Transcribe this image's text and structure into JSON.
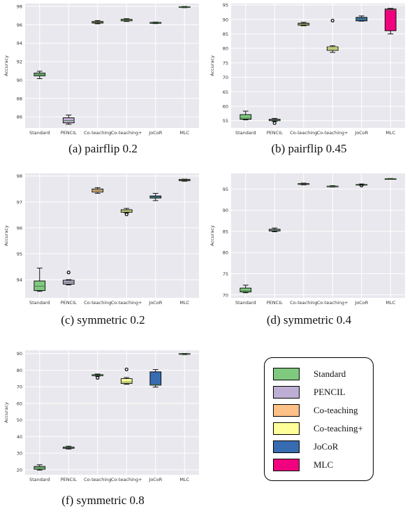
{
  "colors": {
    "Standard": "#7fc97f",
    "PENCIL": "#beaed4",
    "Co-teaching": "#fdc086",
    "Co-teaching+": "#ffff99",
    "JoCoR": "#386cb0",
    "MLC": "#f0027f",
    "plot_bg": "#e8e8ee",
    "grid": "#ffffff"
  },
  "legend": {
    "items": [
      {
        "label": "Standard",
        "color": "#7fc97f"
      },
      {
        "label": "PENCIL",
        "color": "#beaed4"
      },
      {
        "label": "Co-teaching",
        "color": "#fdc086"
      },
      {
        "label": "Co-teaching+",
        "color": "#ffff99"
      },
      {
        "label": "JoCoR",
        "color": "#386cb0"
      },
      {
        "label": "MLC",
        "color": "#f0027f"
      }
    ]
  },
  "chart_data": [
    {
      "type": "box",
      "caption": "(a) pairflip 0.2",
      "ylabel": "Accuracy",
      "ylim": [
        84.8,
        98.3
      ],
      "yticks": [
        86,
        88,
        90,
        92,
        94,
        96,
        98
      ],
      "categories": [
        "Standard",
        "PENCIL",
        "Co-teaching",
        "Co-teaching+",
        "JoCoR",
        "MLC"
      ],
      "boxes": [
        {
          "whislo": 90.15,
          "q1": 90.45,
          "med": 90.6,
          "q3": 90.75,
          "whishi": 90.95,
          "fliers": []
        },
        {
          "whislo": 85.2,
          "q1": 85.35,
          "med": 85.6,
          "q3": 85.9,
          "whishi": 86.2,
          "fliers": []
        },
        {
          "whislo": 96.1,
          "q1": 96.18,
          "med": 96.25,
          "q3": 96.35,
          "whishi": 96.45,
          "fliers": []
        },
        {
          "whislo": 96.35,
          "q1": 96.42,
          "med": 96.5,
          "q3": 96.58,
          "whishi": 96.65,
          "fliers": []
        },
        {
          "whislo": 96.12,
          "q1": 96.15,
          "med": 96.2,
          "q3": 96.25,
          "whishi": 96.28,
          "fliers": []
        },
        {
          "whislo": 97.85,
          "q1": 97.88,
          "med": 97.92,
          "q3": 97.95,
          "whishi": 97.98,
          "fliers": []
        }
      ]
    },
    {
      "type": "box",
      "caption": "(b) pairflip 0.45",
      "ylabel": "Accuracy",
      "ylim": [
        52.5,
        95.5
      ],
      "yticks": [
        55,
        60,
        65,
        70,
        75,
        80,
        85,
        90,
        95
      ],
      "categories": [
        "Standard",
        "PENCIL",
        "Co-teaching",
        "Co-teaching+",
        "JoCoR",
        "MLC"
      ],
      "boxes": [
        {
          "whislo": 55.3,
          "q1": 55.5,
          "med": 55.9,
          "q3": 57.1,
          "whishi": 58.3,
          "fliers": []
        },
        {
          "whislo": 54.8,
          "q1": 55.0,
          "med": 55.2,
          "q3": 55.5,
          "whishi": 55.8,
          "fliers": [
            54.2
          ]
        },
        {
          "whislo": 87.8,
          "q1": 88.0,
          "med": 88.4,
          "q3": 88.7,
          "whishi": 89.0,
          "fliers": []
        },
        {
          "whislo": 78.6,
          "q1": 79.3,
          "med": 79.8,
          "q3": 80.5,
          "whishi": 80.9,
          "fliers": [
            89.6
          ]
        },
        {
          "whislo": 89.4,
          "q1": 89.5,
          "med": 90.1,
          "q3": 90.7,
          "whishi": 91.2,
          "fliers": []
        },
        {
          "whislo": 85.0,
          "q1": 86.1,
          "med": 93.3,
          "q3": 93.6,
          "whishi": 93.8,
          "fliers": []
        }
      ]
    },
    {
      "type": "box",
      "caption": "(c) symmetric 0.2",
      "ylabel": "Accuracy",
      "ylim": [
        93.3,
        98.1
      ],
      "yticks": [
        94,
        95,
        96,
        97,
        98
      ],
      "categories": [
        "Standard",
        "PENCIL",
        "Co-teaching",
        "Co-teaching+",
        "JoCoR",
        "MLC"
      ],
      "boxes": [
        {
          "whislo": 93.55,
          "q1": 93.58,
          "med": 93.75,
          "q3": 93.95,
          "whishi": 94.45,
          "fliers": []
        },
        {
          "whislo": 93.8,
          "q1": 93.83,
          "med": 93.9,
          "q3": 93.98,
          "whishi": 94.0,
          "fliers": [
            94.28
          ]
        },
        {
          "whislo": 97.33,
          "q1": 97.38,
          "med": 97.45,
          "q3": 97.5,
          "whishi": 97.55,
          "fliers": []
        },
        {
          "whislo": 96.58,
          "q1": 96.6,
          "med": 96.65,
          "q3": 96.7,
          "whishi": 96.75,
          "fliers": [
            96.52
          ]
        },
        {
          "whislo": 97.05,
          "q1": 97.15,
          "med": 97.18,
          "q3": 97.23,
          "whishi": 97.33,
          "fliers": []
        },
        {
          "whislo": 97.8,
          "q1": 97.82,
          "med": 97.85,
          "q3": 97.87,
          "whishi": 97.88,
          "fliers": []
        }
      ]
    },
    {
      "type": "box",
      "caption": "(d) symmetric 0.4",
      "ylabel": "Accuracy",
      "ylim": [
        69.3,
        98.7
      ],
      "yticks": [
        70,
        75,
        80,
        85,
        90,
        95
      ],
      "categories": [
        "Standard",
        "PENCIL",
        "Co-teaching",
        "Co-teaching+",
        "JoCoR",
        "MLC"
      ],
      "boxes": [
        {
          "whislo": 70.5,
          "q1": 70.7,
          "med": 71.0,
          "q3": 71.6,
          "whishi": 72.3,
          "fliers": []
        },
        {
          "whislo": 84.9,
          "q1": 85.1,
          "med": 85.3,
          "q3": 85.5,
          "whishi": 85.8,
          "fliers": []
        },
        {
          "whislo": 96.0,
          "q1": 96.1,
          "med": 96.2,
          "q3": 96.3,
          "whishi": 96.4,
          "fliers": []
        },
        {
          "whislo": 95.5,
          "q1": 95.6,
          "med": 95.65,
          "q3": 95.7,
          "whishi": 95.8,
          "fliers": []
        },
        {
          "whislo": 95.9,
          "q1": 96.0,
          "med": 96.05,
          "q3": 96.1,
          "whishi": 96.2,
          "fliers": [
            95.85
          ]
        },
        {
          "whislo": 97.3,
          "q1": 97.35,
          "med": 97.4,
          "q3": 97.45,
          "whishi": 97.5,
          "fliers": []
        }
      ]
    },
    {
      "type": "box",
      "caption": "(f) symmetric 0.8",
      "ylabel": "Accuracy",
      "ylim": [
        17,
        92
      ],
      "yticks": [
        20,
        30,
        40,
        50,
        60,
        70,
        80,
        90
      ],
      "categories": [
        "Standard",
        "PENCIL",
        "Co-teaching",
        "Co-teaching+",
        "JoCoR",
        "MLC"
      ],
      "boxes": [
        {
          "whislo": 19.8,
          "q1": 20.3,
          "med": 21.2,
          "q3": 22.0,
          "whishi": 23.0,
          "fliers": []
        },
        {
          "whislo": 32.5,
          "q1": 32.9,
          "med": 33.3,
          "q3": 33.7,
          "whishi": 34.2,
          "fliers": []
        },
        {
          "whislo": 76.4,
          "q1": 76.7,
          "med": 77.0,
          "q3": 77.3,
          "whishi": 77.7,
          "fliers": [
            75.4
          ]
        },
        {
          "whislo": 71.5,
          "q1": 72.0,
          "med": 72.9,
          "q3": 74.9,
          "whishi": 75.6,
          "fliers": [
            80.5
          ]
        },
        {
          "whislo": 69.8,
          "q1": 71.0,
          "med": 71.3,
          "q3": 79.0,
          "whishi": 80.4,
          "fliers": []
        },
        {
          "whislo": 89.4,
          "q1": 89.6,
          "med": 89.8,
          "q3": 90.0,
          "whishi": 90.1,
          "fliers": []
        }
      ]
    }
  ]
}
